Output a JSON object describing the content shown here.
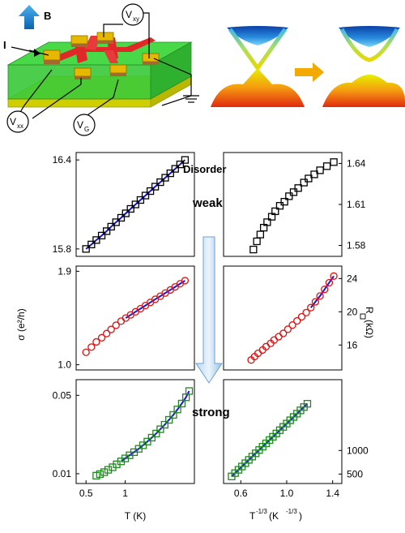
{
  "device": {
    "field_label": "B",
    "current_label": "I",
    "vxy_label": "V",
    "vxy_sub": "xy",
    "vxx_label": "V",
    "vxx_sub": "xx",
    "vg_label": "V",
    "vg_sub": "G"
  },
  "annotations": {
    "disorder": "Disorder",
    "weak": "weak",
    "strong": "strong"
  },
  "axes": {
    "left_ylabel": "σ (e²/h)",
    "right_ylabel": "R",
    "right_ylabel_unit": " (kΩ)",
    "left_xlabel": "T (K)",
    "right_xlabel_main": "T",
    "right_xlabel_sup": "-1/3",
    "right_xlabel_unit": " (K",
    "right_xlabel_unit_sup": "-1/3",
    "right_xlabel_close": ")"
  },
  "colors": {
    "weak_markers": "#000000",
    "mid_markers": "#e01010",
    "strong_markers": "#1e8a1e",
    "fit_line": "#1515e0",
    "device_substrate": "#33cc33",
    "device_gate": "#e6e600",
    "device_channel": "#e83030",
    "device_contact": "#e6b800",
    "arrow_blue": "#1a7fd9",
    "arrow_orange": "#f2a900"
  },
  "chart_data": [
    {
      "type": "scatter",
      "panel": "weak-left",
      "xscale": "log",
      "xlim": [
        0.42,
        3.4
      ],
      "ylim": [
        15.75,
        16.45
      ],
      "yticks": [
        "15.8",
        "16.4"
      ],
      "x": [
        0.5,
        0.55,
        0.6,
        0.66,
        0.72,
        0.78,
        0.85,
        0.93,
        1.01,
        1.1,
        1.2,
        1.31,
        1.43,
        1.56,
        1.7,
        1.86,
        2.03,
        2.22,
        2.42,
        2.64,
        2.88
      ],
      "y": [
        15.8,
        15.83,
        15.86,
        15.89,
        15.92,
        15.95,
        15.98,
        16.01,
        16.04,
        16.07,
        16.1,
        16.13,
        16.16,
        16.19,
        16.22,
        16.25,
        16.28,
        16.31,
        16.34,
        16.37,
        16.4
      ],
      "fit": true
    },
    {
      "type": "scatter",
      "panel": "weak-right",
      "xlim": [
        0.45,
        1.48
      ],
      "ylim": [
        1.572,
        1.648
      ],
      "yticks": [
        "1.58",
        "1.61",
        "1.64"
      ],
      "x": [
        0.71,
        0.74,
        0.77,
        0.8,
        0.83,
        0.87,
        0.9,
        0.94,
        0.98,
        1.02,
        1.06,
        1.1,
        1.15,
        1.19,
        1.24,
        1.29,
        1.35,
        1.41
      ],
      "y": [
        1.577,
        1.583,
        1.588,
        1.593,
        1.597,
        1.601,
        1.605,
        1.609,
        1.612,
        1.616,
        1.619,
        1.622,
        1.626,
        1.629,
        1.632,
        1.635,
        1.638,
        1.641
      ]
    },
    {
      "type": "scatter",
      "panel": "mid-left",
      "xscale": "log",
      "xlim": [
        0.42,
        3.4
      ],
      "ylim": [
        0.95,
        1.95
      ],
      "yticks": [
        "1.0",
        "1.9"
      ],
      "x": [
        0.5,
        0.55,
        0.6,
        0.66,
        0.72,
        0.78,
        0.85,
        0.93,
        1.01,
        1.1,
        1.2,
        1.31,
        1.43,
        1.56,
        1.7,
        1.86,
        2.03,
        2.22,
        2.42,
        2.64,
        2.88
      ],
      "y": [
        1.12,
        1.17,
        1.22,
        1.26,
        1.3,
        1.34,
        1.38,
        1.42,
        1.45,
        1.48,
        1.51,
        1.54,
        1.57,
        1.6,
        1.63,
        1.66,
        1.69,
        1.72,
        1.75,
        1.78,
        1.81
      ],
      "fit": true,
      "fit_from_index": 8
    },
    {
      "type": "scatter",
      "panel": "mid-right",
      "xlim": [
        0.45,
        1.48
      ],
      "ylim": [
        13,
        25.5
      ],
      "yticks": [
        "16",
        "20",
        "24"
      ],
      "x": [
        0.69,
        0.72,
        0.75,
        0.79,
        0.82,
        0.86,
        0.89,
        0.93,
        0.97,
        1.01,
        1.05,
        1.09,
        1.13,
        1.17,
        1.21,
        1.25,
        1.29,
        1.33,
        1.37,
        1.41
      ],
      "y": [
        14.2,
        14.6,
        15.0,
        15.4,
        15.8,
        16.2,
        16.6,
        17.0,
        17.4,
        17.9,
        18.4,
        18.9,
        19.4,
        19.9,
        20.5,
        21.2,
        21.9,
        22.7,
        23.5,
        24.3
      ],
      "fit": true,
      "fit_from_index": 14
    },
    {
      "type": "scatter",
      "panel": "strong-left",
      "xscale": "log",
      "xlim": [
        0.42,
        3.4
      ],
      "ylim": [
        0.005,
        0.058
      ],
      "yticks": [
        "0.01",
        "0.05"
      ],
      "x": [
        0.6,
        0.64,
        0.69,
        0.74,
        0.8,
        0.86,
        0.93,
        1.0,
        1.08,
        1.17,
        1.27,
        1.37,
        1.48,
        1.6,
        1.73,
        1.86,
        2.01,
        2.17,
        2.34,
        2.52,
        2.72,
        2.93,
        3.1
      ],
      "y": [
        0.009,
        0.0098,
        0.0108,
        0.012,
        0.0133,
        0.0148,
        0.0163,
        0.0178,
        0.0194,
        0.021,
        0.0227,
        0.0245,
        0.0264,
        0.0284,
        0.0305,
        0.0327,
        0.035,
        0.0375,
        0.04,
        0.0428,
        0.0458,
        0.049,
        0.0522
      ],
      "fit": true,
      "fit_from_index": 6
    },
    {
      "type": "scatter",
      "panel": "strong-right",
      "xlim": [
        0.45,
        1.48
      ],
      "ylim": [
        300,
        2500
      ],
      "yticks": [
        "500",
        "1000"
      ],
      "x": [
        0.52,
        0.55,
        0.58,
        0.61,
        0.64,
        0.67,
        0.7,
        0.73,
        0.76,
        0.79,
        0.82,
        0.85,
        0.88,
        0.91,
        0.94,
        0.97,
        1.0,
        1.03,
        1.06,
        1.09,
        1.12,
        1.15,
        1.18
      ],
      "y": [
        450,
        520,
        590,
        660,
        730,
        800,
        870,
        940,
        1010,
        1080,
        1150,
        1220,
        1290,
        1360,
        1430,
        1500,
        1570,
        1640,
        1710,
        1780,
        1850,
        1920,
        1990
      ],
      "fit": true
    }
  ],
  "xticks_left": [
    "0.5",
    "1"
  ],
  "xticks_right": [
    "0.6",
    "1.0",
    "1.4"
  ]
}
